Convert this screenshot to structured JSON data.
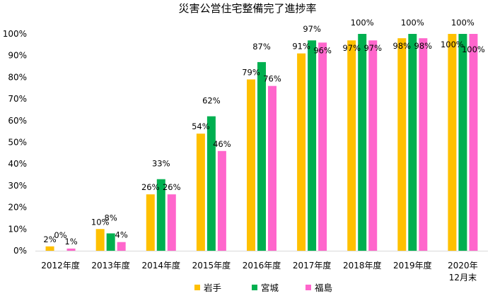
{
  "chart_data": {
    "type": "bar",
    "title": "災害公営住宅整備完了進捗率",
    "categories": [
      [
        "2012年度"
      ],
      [
        "2013年度"
      ],
      [
        "2014年度"
      ],
      [
        "2015年度"
      ],
      [
        "2016年度"
      ],
      [
        "2017年度"
      ],
      [
        "2018年度"
      ],
      [
        "2019年度"
      ],
      [
        "2020年",
        "12月末"
      ]
    ],
    "series": [
      {
        "name": "岩手",
        "color": "#ffc000",
        "values": [
          2,
          10,
          26,
          54,
          79,
          91,
          97,
          98,
          100
        ],
        "labels": [
          "2%",
          "10%",
          "26%",
          "54%",
          "79%",
          "91%",
          "97%",
          "98%",
          "100%"
        ]
      },
      {
        "name": "宮城",
        "color": "#00b050",
        "values": [
          0,
          8,
          33,
          62,
          87,
          97,
          100,
          100,
          100
        ],
        "labels": [
          "0%",
          "8%",
          "33%",
          "62%",
          "87%",
          "97%",
          "100%",
          "100%",
          "100%"
        ]
      },
      {
        "name": "福島",
        "color": "#ff66cc",
        "values": [
          1,
          4,
          26,
          46,
          76,
          96,
          97,
          98,
          100
        ],
        "labels": [
          "1%",
          "4%",
          "26%",
          "46%",
          "76%",
          "96%",
          "97%",
          "98%",
          "100%"
        ]
      }
    ],
    "yticks": [
      "0%",
      "10%",
      "20%",
      "30%",
      "40%",
      "50%",
      "60%",
      "70%",
      "80%",
      "90%",
      "100%"
    ],
    "ylim": [
      0,
      100
    ],
    "grid": false,
    "legend_position": "bottom"
  }
}
